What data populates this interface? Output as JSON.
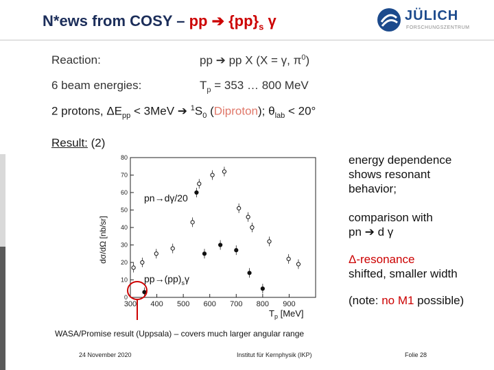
{
  "title": {
    "prefix": "N*ews from COSY –",
    "reaction": "pp ➔ {pp}",
    "sub": "s",
    "gamma": " γ"
  },
  "logo": {
    "word": "JÜLICH",
    "sub": "FORSCHUNGSZENTRUM"
  },
  "info": {
    "reaction_label": "Reaction:",
    "reaction_value": "pp ➔ pp X (X = γ, π",
    "reaction_sup": "0",
    "reaction_end": ")",
    "beam_label": "6 beam energies:",
    "beam_value_a": "T",
    "beam_value_sub": "p",
    "beam_value_b": " = 353 … 800 MeV"
  },
  "line3": {
    "a": "2 protons, ΔE",
    "sub_pp": "pp",
    "b": " < 3MeV ➔ ",
    "sup1": "1",
    "c": "S",
    "sub0": "0",
    "d": " (",
    "diproton": "Diproton",
    "e": "); θ",
    "sub_lab": "lab",
    "f": " < 20°"
  },
  "result": {
    "label": "Result:",
    "num": " (2)"
  },
  "plot": {
    "ylabel": "dσ/dΩ [nb/sr]",
    "xlabel": "T",
    "xlabel_sub": "p",
    "xlabel_unit": " [MeV]",
    "label_pn": "pn→dγ/20",
    "label_pp": "pp→(pp)",
    "label_pp_sub": "s",
    "label_pp_end": "γ",
    "highlight": "red-circle"
  },
  "chart_data": {
    "type": "scatter",
    "xlim": [
      300,
      1000
    ],
    "ylim": [
      0,
      80
    ],
    "xticks": [
      300,
      400,
      500,
      600,
      700,
      800,
      900
    ],
    "yticks": [
      0,
      10,
      20,
      30,
      40,
      50,
      60,
      70,
      80
    ],
    "series": [
      {
        "name": "pn→dγ/20",
        "marker": "open-circle",
        "points": [
          [
            312,
            17
          ],
          [
            345,
            20
          ],
          [
            398,
            25
          ],
          [
            460,
            28
          ],
          [
            535,
            43
          ],
          [
            560,
            65
          ],
          [
            610,
            70
          ],
          [
            655,
            72
          ],
          [
            710,
            51
          ],
          [
            745,
            46
          ],
          [
            760,
            40
          ],
          [
            825,
            32
          ],
          [
            898,
            22
          ],
          [
            935,
            19
          ]
        ]
      },
      {
        "name": "pp→(pp)sγ",
        "marker": "filled-circle",
        "points": [
          [
            353,
            3
          ],
          [
            550,
            60
          ],
          [
            580,
            25
          ],
          [
            640,
            30
          ],
          [
            700,
            27
          ],
          [
            750,
            14
          ],
          [
            800,
            5
          ]
        ]
      }
    ]
  },
  "notes": {
    "n1": [
      "energy dependence",
      "shows resonant",
      "behavior;"
    ],
    "n2a": "comparison with",
    "n2b": "pn ➔ d γ",
    "n3a": "Δ-resonance",
    "n3b": "shifted, smaller width",
    "n4_a": "(note: ",
    "n4_red": "no M1",
    "n4_b": " possible)"
  },
  "wasa": "WASA/Promise result (Uppsala) – covers much larger angular range",
  "footer": {
    "date": "24 November 2020",
    "institute": "Institut für Kernphysik (IKP)",
    "page": "Folie 28"
  },
  "colors": {
    "title": "#1c2e5a",
    "red": "#cc0000",
    "pink": "#e0786a",
    "logo": "#1c4a8c"
  }
}
